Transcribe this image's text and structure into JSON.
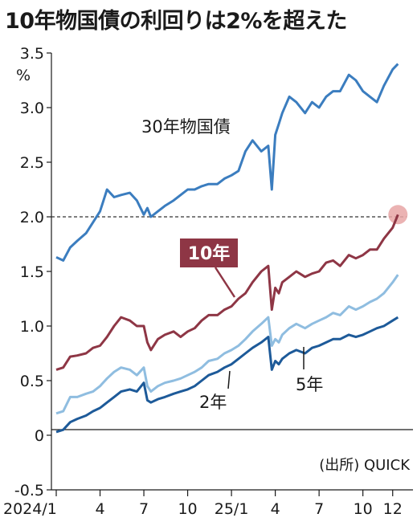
{
  "title": "10年物国債の利回りは2%を超えた",
  "chart_data": {
    "type": "line",
    "title": "10年物国債の利回りは2%を超えた",
    "ylabel": "%",
    "source": "(出所) QUICK",
    "ylim": [
      -0.5,
      3.5
    ],
    "yticks": [
      "3.5",
      "3.0",
      "2.5",
      "2.0",
      "1.5",
      "1.0",
      "0.5",
      "0",
      "-0.5"
    ],
    "xlim": [
      2024.0,
      2025.99
    ],
    "xticks": [
      {
        "x": 2024.0,
        "label": "2024/1"
      },
      {
        "x": 2024.25,
        "label": "4"
      },
      {
        "x": 2024.5,
        "label": "7"
      },
      {
        "x": 2024.75,
        "label": "10"
      },
      {
        "x": 2025.0,
        "label": "25/1"
      },
      {
        "x": 2025.25,
        "label": "4"
      },
      {
        "x": 2025.5,
        "label": "7"
      },
      {
        "x": 2025.75,
        "label": "10"
      },
      {
        "x": 2025.92,
        "label": "12"
      }
    ],
    "reference_line": {
      "y": 2.0,
      "style": "dashed"
    },
    "highlight_point": {
      "series": "10年",
      "x": 2025.95,
      "y": 2.02
    },
    "series": [
      {
        "name": "30年物国債",
        "color": "#3b7dbf",
        "x": [
          2024.0,
          2024.04,
          2024.08,
          2024.12,
          2024.17,
          2024.21,
          2024.25,
          2024.29,
          2024.33,
          2024.37,
          2024.42,
          2024.46,
          2024.5,
          2024.52,
          2024.54,
          2024.58,
          2024.62,
          2024.67,
          2024.71,
          2024.75,
          2024.79,
          2024.83,
          2024.87,
          2024.92,
          2024.96,
          2025.0,
          2025.04,
          2025.08,
          2025.12,
          2025.17,
          2025.21,
          2025.23,
          2025.25,
          2025.27,
          2025.29,
          2025.33,
          2025.37,
          2025.42,
          2025.46,
          2025.5,
          2025.54,
          2025.58,
          2025.62,
          2025.67,
          2025.71,
          2025.75,
          2025.79,
          2025.83,
          2025.87,
          2025.92,
          2025.95
        ],
        "values": [
          1.63,
          1.6,
          1.72,
          1.78,
          1.85,
          1.95,
          2.05,
          2.25,
          2.18,
          2.2,
          2.22,
          2.15,
          2.02,
          2.08,
          2.0,
          2.05,
          2.1,
          2.15,
          2.2,
          2.25,
          2.25,
          2.28,
          2.3,
          2.3,
          2.35,
          2.38,
          2.42,
          2.6,
          2.7,
          2.6,
          2.65,
          2.25,
          2.75,
          2.85,
          2.95,
          3.1,
          3.05,
          2.95,
          3.05,
          3.0,
          3.1,
          3.15,
          3.15,
          3.3,
          3.25,
          3.15,
          3.1,
          3.05,
          3.2,
          3.35,
          3.4
        ]
      },
      {
        "name": "10年",
        "color": "#8e3645",
        "x": [
          2024.0,
          2024.04,
          2024.08,
          2024.12,
          2024.17,
          2024.21,
          2024.25,
          2024.29,
          2024.33,
          2024.37,
          2024.42,
          2024.46,
          2024.5,
          2024.52,
          2024.54,
          2024.58,
          2024.62,
          2024.67,
          2024.71,
          2024.75,
          2024.79,
          2024.83,
          2024.87,
          2024.92,
          2024.96,
          2025.0,
          2025.04,
          2025.08,
          2025.12,
          2025.17,
          2025.21,
          2025.23,
          2025.25,
          2025.27,
          2025.29,
          2025.33,
          2025.37,
          2025.42,
          2025.46,
          2025.5,
          2025.54,
          2025.58,
          2025.62,
          2025.67,
          2025.71,
          2025.75,
          2025.79,
          2025.83,
          2025.87,
          2025.92,
          2025.95
        ],
        "values": [
          0.6,
          0.62,
          0.72,
          0.73,
          0.75,
          0.8,
          0.82,
          0.9,
          1.0,
          1.08,
          1.05,
          1.0,
          1.0,
          0.85,
          0.78,
          0.88,
          0.92,
          0.95,
          0.9,
          0.95,
          0.98,
          1.05,
          1.1,
          1.1,
          1.15,
          1.18,
          1.25,
          1.3,
          1.4,
          1.5,
          1.55,
          1.15,
          1.35,
          1.3,
          1.4,
          1.45,
          1.5,
          1.45,
          1.48,
          1.5,
          1.58,
          1.6,
          1.55,
          1.65,
          1.62,
          1.65,
          1.7,
          1.7,
          1.8,
          1.9,
          2.02
        ]
      },
      {
        "name": "5年",
        "color": "#8fbde0",
        "x": [
          2024.0,
          2024.04,
          2024.08,
          2024.12,
          2024.17,
          2024.21,
          2024.25,
          2024.29,
          2024.33,
          2024.37,
          2024.42,
          2024.46,
          2024.5,
          2024.52,
          2024.54,
          2024.58,
          2024.62,
          2024.67,
          2024.71,
          2024.75,
          2024.79,
          2024.83,
          2024.87,
          2024.92,
          2024.96,
          2025.0,
          2025.04,
          2025.08,
          2025.12,
          2025.17,
          2025.21,
          2025.23,
          2025.25,
          2025.27,
          2025.29,
          2025.33,
          2025.37,
          2025.42,
          2025.46,
          2025.5,
          2025.54,
          2025.58,
          2025.62,
          2025.67,
          2025.71,
          2025.75,
          2025.79,
          2025.83,
          2025.87,
          2025.92,
          2025.95
        ],
        "values": [
          0.2,
          0.22,
          0.35,
          0.35,
          0.38,
          0.4,
          0.45,
          0.52,
          0.58,
          0.62,
          0.6,
          0.55,
          0.62,
          0.45,
          0.4,
          0.45,
          0.48,
          0.5,
          0.52,
          0.55,
          0.58,
          0.62,
          0.68,
          0.7,
          0.75,
          0.78,
          0.82,
          0.88,
          0.95,
          1.02,
          1.08,
          0.82,
          0.88,
          0.85,
          0.92,
          0.98,
          1.02,
          0.98,
          1.02,
          1.05,
          1.08,
          1.12,
          1.1,
          1.18,
          1.15,
          1.18,
          1.22,
          1.25,
          1.3,
          1.4,
          1.47
        ]
      },
      {
        "name": "2年",
        "color": "#1d5a99",
        "x": [
          2024.0,
          2024.04,
          2024.08,
          2024.12,
          2024.17,
          2024.21,
          2024.25,
          2024.29,
          2024.33,
          2024.37,
          2024.42,
          2024.46,
          2024.5,
          2024.52,
          2024.54,
          2024.58,
          2024.62,
          2024.67,
          2024.71,
          2024.75,
          2024.79,
          2024.83,
          2024.87,
          2024.92,
          2024.96,
          2025.0,
          2025.04,
          2025.08,
          2025.12,
          2025.17,
          2025.21,
          2025.23,
          2025.25,
          2025.27,
          2025.29,
          2025.33,
          2025.37,
          2025.42,
          2025.46,
          2025.5,
          2025.54,
          2025.58,
          2025.62,
          2025.67,
          2025.71,
          2025.75,
          2025.79,
          2025.83,
          2025.87,
          2025.92,
          2025.95
        ],
        "values": [
          0.03,
          0.05,
          0.12,
          0.15,
          0.18,
          0.22,
          0.25,
          0.3,
          0.35,
          0.4,
          0.42,
          0.4,
          0.48,
          0.32,
          0.3,
          0.33,
          0.35,
          0.38,
          0.4,
          0.42,
          0.45,
          0.5,
          0.55,
          0.58,
          0.62,
          0.65,
          0.7,
          0.75,
          0.8,
          0.85,
          0.9,
          0.6,
          0.68,
          0.65,
          0.7,
          0.75,
          0.78,
          0.75,
          0.8,
          0.82,
          0.85,
          0.88,
          0.88,
          0.92,
          0.9,
          0.92,
          0.95,
          0.98,
          1.0,
          1.05,
          1.08
        ]
      }
    ]
  }
}
